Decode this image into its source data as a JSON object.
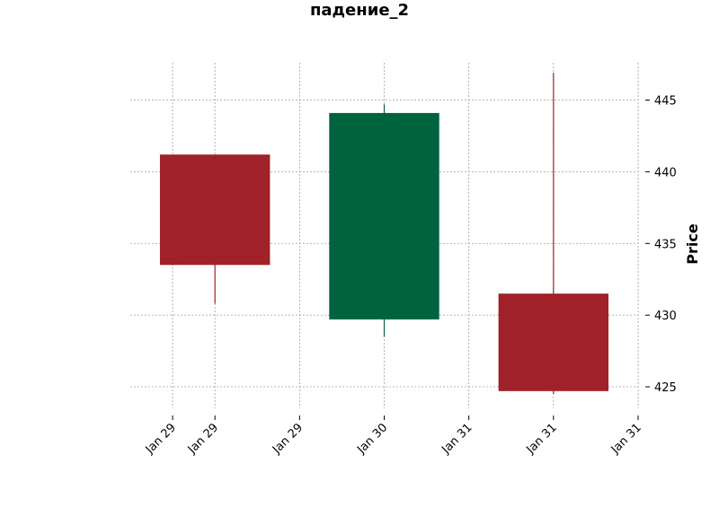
{
  "chart_data": {
    "type": "candlestick",
    "title": "падение_2",
    "ylabel": "Price",
    "xlabel": "",
    "ylim": [
      423.5,
      447.6
    ],
    "xlim": [
      -0.5,
      2.5
    ],
    "grid": true,
    "y_axis_side": "right",
    "y_ticks": [
      425,
      430,
      435,
      440,
      445
    ],
    "x_ticks": [
      {
        "pos": -0.25,
        "label": "Jan 29"
      },
      {
        "pos": 0.0,
        "label": "Jan 29"
      },
      {
        "pos": 0.5,
        "label": "Jan 29"
      },
      {
        "pos": 1.0,
        "label": "Jan 30"
      },
      {
        "pos": 1.5,
        "label": "Jan 31"
      },
      {
        "pos": 2.0,
        "label": "Jan 31"
      },
      {
        "pos": 2.5,
        "label": "Jan 31"
      }
    ],
    "candles": [
      {
        "x": 0,
        "open": 441.2,
        "high": 441.2,
        "low": 430.8,
        "close": 433.5
      },
      {
        "x": 1,
        "open": 429.7,
        "high": 444.7,
        "low": 428.5,
        "close": 444.1
      },
      {
        "x": 2,
        "open": 431.5,
        "high": 446.9,
        "low": 424.5,
        "close": 424.7
      }
    ],
    "colors": {
      "up": "#006340",
      "down": "#a02128",
      "grid": "#a0a0a0"
    }
  }
}
